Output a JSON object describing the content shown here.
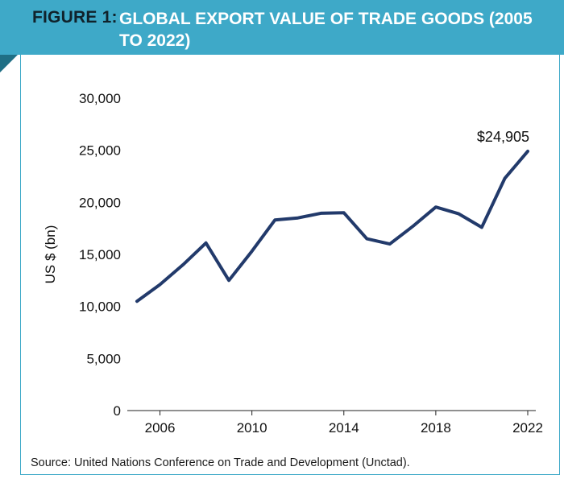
{
  "figure": {
    "label": "FIGURE 1:",
    "title": "GLOBAL EXPORT VALUE OF TRADE GOODS (2005 TO 2022)"
  },
  "source": "Source: United Nations Conference on Trade and Development (Unctad).",
  "colors": {
    "header": "#3ea9c8",
    "line": "#223a6b"
  },
  "chart_data": {
    "type": "line",
    "title": "GLOBAL EXPORT VALUE OF TRADE GOODS (2005 TO 2022)",
    "xlabel": "",
    "ylabel": "US $ (bn)",
    "xlim": [
      2005,
      2022
    ],
    "ylim": [
      0,
      30000
    ],
    "x_ticks": [
      2006,
      2010,
      2014,
      2018,
      2022
    ],
    "y_ticks": [
      0,
      5000,
      10000,
      15000,
      20000,
      25000,
      30000
    ],
    "y_tick_labels": [
      "0",
      "5,000",
      "10,000",
      "15,000",
      "20,000",
      "25,000",
      "30,000"
    ],
    "grid": false,
    "legend": "none",
    "series": [
      {
        "x": [
          2005,
          2006,
          2007,
          2008,
          2009,
          2010,
          2011,
          2012,
          2013,
          2014,
          2015,
          2016,
          2017,
          2018,
          2019,
          2020,
          2021,
          2022
        ],
        "values": [
          10500,
          12100,
          14000,
          16100,
          12500,
          15300,
          18300,
          18500,
          18950,
          19000,
          16500,
          16000,
          17700,
          19550,
          18900,
          17600,
          22300,
          24905
        ]
      }
    ],
    "annotations": [
      {
        "text": "$24,905",
        "x": 2022,
        "y": 24905
      }
    ]
  }
}
